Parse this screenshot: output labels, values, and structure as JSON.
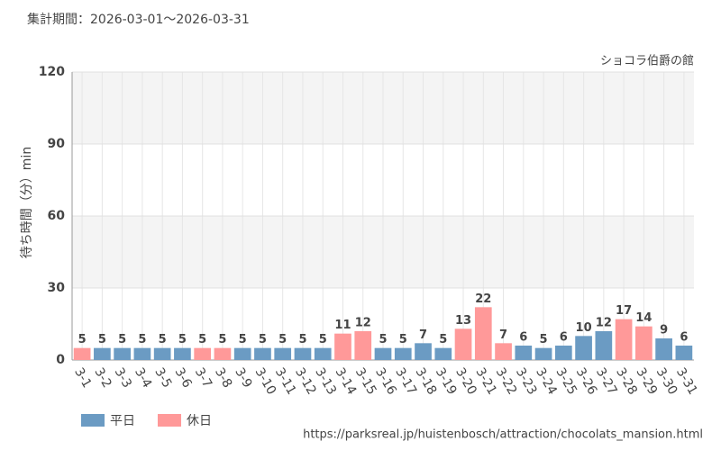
{
  "chart_data": {
    "type": "bar",
    "title": "集計期間：2026-03-01～2026-03-31",
    "subtitle": "ショコラ伯爵の館",
    "y_label": "待ち時間（分）min",
    "source": "https://parksreal.jp/huistenbosch/attraction/chocolats_mansion.html",
    "categories": [
      "3-1",
      "3-2",
      "3-3",
      "3-4",
      "3-5",
      "3-6",
      "3-7",
      "3-8",
      "3-9",
      "3-10",
      "3-11",
      "3-12",
      "3-13",
      "3-14",
      "3-15",
      "3-16",
      "3-17",
      "3-18",
      "3-19",
      "3-20",
      "3-21",
      "3-22",
      "3-23",
      "3-24",
      "3-25",
      "3-26",
      "3-27",
      "3-28",
      "3-29",
      "3-30",
      "3-31"
    ],
    "series": [
      {
        "name": "平日",
        "color": "#6b9bc3",
        "values": [
          null,
          5,
          5,
          5,
          5,
          5,
          null,
          null,
          5,
          5,
          5,
          5,
          5,
          null,
          null,
          5,
          5,
          7,
          5,
          null,
          null,
          null,
          6,
          5,
          6,
          10,
          12,
          null,
          null,
          9,
          6
        ]
      },
      {
        "name": "休日",
        "color": "#ff9999",
        "values": [
          5,
          null,
          null,
          null,
          null,
          null,
          5,
          5,
          null,
          null,
          null,
          null,
          null,
          11,
          12,
          null,
          null,
          null,
          null,
          13,
          22,
          7,
          null,
          null,
          null,
          null,
          null,
          17,
          14,
          null,
          null
        ]
      }
    ],
    "ylim": [
      0,
      120
    ],
    "yticks": [
      0,
      30,
      60,
      90,
      120
    ],
    "grid": true
  }
}
